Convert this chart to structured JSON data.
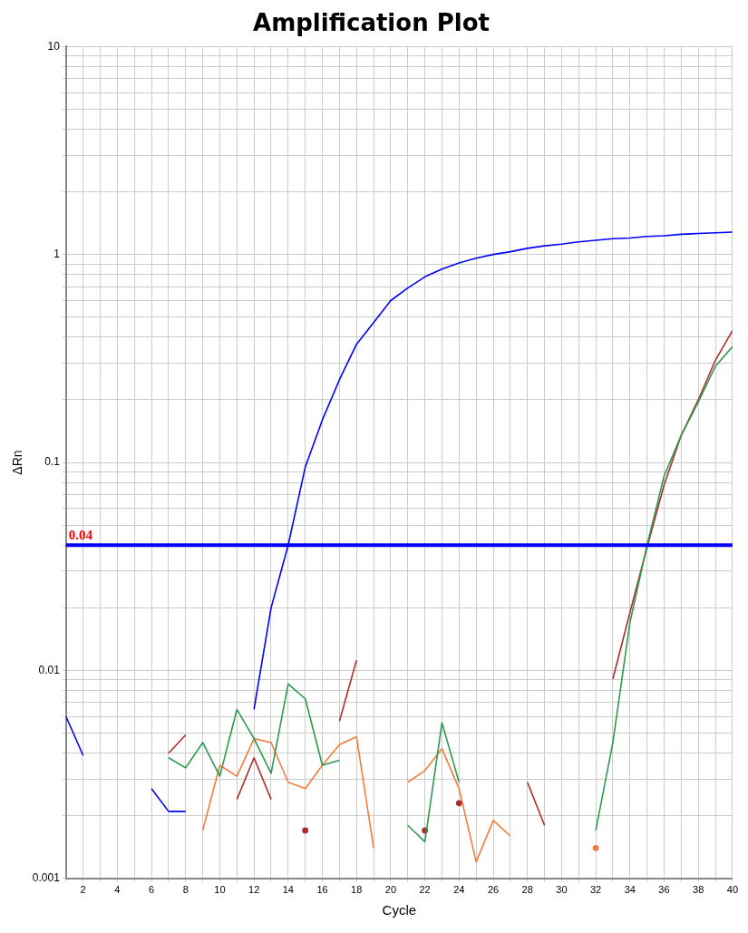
{
  "chart_data": {
    "type": "line",
    "title": "Amplification Plot",
    "xlabel": "Cycle",
    "ylabel": "ΔRn",
    "log": "y",
    "grid": true,
    "legend": false,
    "marker": "none",
    "line_style": "solid",
    "x": [
      1,
      2,
      3,
      4,
      5,
      6,
      7,
      8,
      9,
      10,
      11,
      12,
      13,
      14,
      15,
      16,
      17,
      18,
      19,
      20,
      21,
      22,
      23,
      24,
      25,
      26,
      27,
      28,
      29,
      30,
      31,
      32,
      33,
      34,
      35,
      36,
      37,
      38,
      39,
      40
    ],
    "xlim": [
      1,
      40
    ],
    "xticks": [
      {
        "value": 1,
        "label": null
      },
      2,
      {
        "value": 3,
        "label": null
      },
      4,
      {
        "value": 5,
        "label": null
      },
      6,
      {
        "value": 7,
        "label": null
      },
      8,
      {
        "value": 9,
        "label": null
      },
      10,
      {
        "value": 11,
        "label": null
      },
      12,
      {
        "value": 13,
        "label": null
      },
      14,
      {
        "value": 15,
        "label": null
      },
      16,
      {
        "value": 17,
        "label": null
      },
      18,
      {
        "value": 19,
        "label": null
      },
      20,
      {
        "value": 21,
        "label": null
      },
      22,
      {
        "value": 23,
        "label": null
      },
      24,
      {
        "value": 25,
        "label": null
      },
      26,
      {
        "value": 27,
        "label": null
      },
      28,
      {
        "value": 29,
        "label": null
      },
      30,
      {
        "value": 31,
        "label": null
      },
      32,
      {
        "value": 33,
        "label": null
      },
      34,
      {
        "value": 35,
        "label": null
      },
      36,
      {
        "value": 37,
        "label": null
      },
      38,
      {
        "value": 39,
        "label": null
      },
      40
    ],
    "ylim": [
      0.001,
      10
    ],
    "yticks": [
      0.001,
      {
        "value": 0.002,
        "label": null
      },
      {
        "value": 0.003,
        "label": null
      },
      {
        "value": 0.004,
        "label": null
      },
      {
        "value": 0.005,
        "label": null
      },
      {
        "value": 0.006,
        "label": null
      },
      {
        "value": 0.007,
        "label": null
      },
      {
        "value": 0.008,
        "label": null
      },
      {
        "value": 0.009,
        "label": null
      },
      0.01,
      {
        "value": 0.02,
        "label": null
      },
      {
        "value": 0.03,
        "label": null
      },
      {
        "value": 0.04,
        "label": null
      },
      {
        "value": 0.05,
        "label": null
      },
      {
        "value": 0.06,
        "label": null
      },
      {
        "value": 0.07,
        "label": null
      },
      {
        "value": 0.08,
        "label": null
      },
      {
        "value": 0.09,
        "label": null
      },
      0.1,
      {
        "value": 0.2,
        "label": null
      },
      {
        "value": 0.3,
        "label": null
      },
      {
        "value": 0.4,
        "label": null
      },
      {
        "value": 0.5,
        "label": null
      },
      {
        "value": 0.6,
        "label": null
      },
      {
        "value": 0.7,
        "label": null
      },
      {
        "value": 0.8,
        "label": null
      },
      {
        "value": 0.9,
        "label": null
      },
      1,
      {
        "value": 2,
        "label": null
      },
      {
        "value": 3,
        "label": null
      },
      {
        "value": 4,
        "label": null
      },
      {
        "value": 5,
        "label": null
      },
      {
        "value": 6,
        "label": null
      },
      {
        "value": 7,
        "label": null
      },
      {
        "value": 8,
        "label": null
      },
      {
        "value": 9,
        "label": null
      },
      10
    ],
    "ref_lines": [
      {
        "axis": "y",
        "value": 0.04,
        "label": "0.04",
        "color": "#0000ff"
      }
    ],
    "series": [
      {
        "color": "#0000ff",
        "values": [
          0.006,
          0.0039,
          null,
          null,
          null,
          0.0027,
          0.0021,
          0.0021,
          null,
          null,
          null,
          0.0065,
          0.02,
          0.04,
          0.095,
          0.16,
          0.25,
          0.37,
          0.47,
          0.6,
          0.69,
          0.78,
          0.85,
          0.91,
          0.96,
          1.0,
          1.03,
          1.07,
          1.1,
          1.12,
          1.15,
          1.17,
          1.19,
          1.2,
          1.22,
          1.23,
          1.25,
          1.26,
          1.27,
          1.28
        ]
      },
      {
        "color": "#2e9a4e",
        "values": [
          null,
          null,
          null,
          null,
          null,
          null,
          0.0038,
          0.0034,
          0.0045,
          0.0031,
          0.0065,
          0.0047,
          0.0032,
          0.0086,
          0.0073,
          0.0035,
          0.0037,
          null,
          null,
          null,
          0.0018,
          0.0015,
          0.0056,
          0.0029,
          null,
          null,
          null,
          null,
          null,
          null,
          null,
          0.0017,
          0.0045,
          0.017,
          0.04,
          0.086,
          0.135,
          0.195,
          0.29,
          0.36
        ]
      },
      {
        "color": "#b22a2a",
        "values": [
          null,
          null,
          null,
          null,
          null,
          null,
          0.004,
          0.0049,
          null,
          null,
          0.0024,
          0.0038,
          0.0024,
          null,
          0.0017,
          null,
          0.0057,
          0.0112,
          null,
          null,
          null,
          0.0017,
          null,
          0.0023,
          null,
          null,
          null,
          0.0029,
          0.0018,
          null,
          null,
          null,
          0.0091,
          0.019,
          0.039,
          0.078,
          0.135,
          0.2,
          0.31,
          0.43
        ]
      },
      {
        "color": "#f47c3c",
        "values": [
          null,
          null,
          null,
          null,
          null,
          null,
          null,
          null,
          0.0017,
          0.0035,
          0.0031,
          0.0047,
          0.0045,
          0.0029,
          0.0027,
          0.0035,
          0.0044,
          0.0048,
          0.0014,
          null,
          0.0029,
          0.0033,
          0.0042,
          0.0027,
          0.0012,
          0.0019,
          0.0016,
          null,
          null,
          null,
          null,
          0.0014,
          null,
          null,
          null,
          null,
          null,
          null,
          null,
          null
        ]
      }
    ]
  }
}
